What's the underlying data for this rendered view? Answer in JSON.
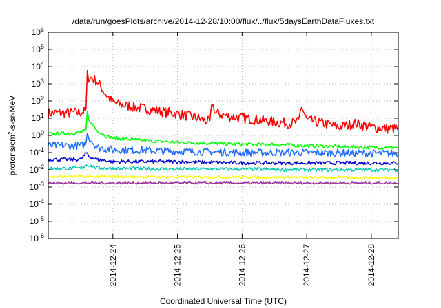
{
  "chart_data": {
    "type": "line",
    "title": "/data/run/goesPlots/archive/2014-12-28/10:00/flux/../flux/5daysEarthDataFluxes.txt",
    "xlabel": "Coordinated Universal Time (UTC)",
    "ylabel_main": "protons/cm",
    "ylabel_sup": "2",
    "ylabel_tail": "-s-sr-MeV",
    "y_scale": "log",
    "ylim": [
      1e-06,
      1000000
    ],
    "y_ticks": [
      {
        "base": "10",
        "exp": "-6",
        "value": 1e-06
      },
      {
        "base": "10",
        "exp": "-5",
        "value": 1e-05
      },
      {
        "base": "10",
        "exp": "-4",
        "value": 0.0001
      },
      {
        "base": "10",
        "exp": "-3",
        "value": 0.001
      },
      {
        "base": "10",
        "exp": "-2",
        "value": 0.01
      },
      {
        "base": "10",
        "exp": "-1",
        "value": 0.1
      },
      {
        "base": "10",
        "exp": "0",
        "value": 1
      },
      {
        "base": "10",
        "exp": "1",
        "value": 10
      },
      {
        "base": "10",
        "exp": "2",
        "value": 100
      },
      {
        "base": "10",
        "exp": "3",
        "value": 1000
      },
      {
        "base": "10",
        "exp": "4",
        "value": 10000
      },
      {
        "base": "10",
        "exp": "5",
        "value": 100000
      },
      {
        "base": "10",
        "exp": "6",
        "value": 1000000
      }
    ],
    "x_start": "2014-12-23T00:00",
    "x_end": "2014-12-28T10:00",
    "x_ticks": [
      "2014-12-24",
      "2014-12-25",
      "2014-12-26",
      "2014-12-27",
      "2014-12-28"
    ],
    "grid": true,
    "legend": "none",
    "series": [
      {
        "color": "#ff0000",
        "x": [
          "2014-12-23T00:00",
          "2014-12-23T06:00",
          "2014-12-23T12:00",
          "2014-12-23T14:00",
          "2014-12-23T14:30",
          "2014-12-23T15:00",
          "2014-12-23T18:00",
          "2014-12-23T21:00",
          "2014-12-24T00:00",
          "2014-12-24T06:00",
          "2014-12-24T12:00",
          "2014-12-24T18:00",
          "2014-12-25T00:00",
          "2014-12-25T06:00",
          "2014-12-25T12:00",
          "2014-12-25T13:00",
          "2014-12-25T14:00",
          "2014-12-25T18:00",
          "2014-12-26T00:00",
          "2014-12-26T06:00",
          "2014-12-26T12:00",
          "2014-12-26T18:00",
          "2014-12-26T21:00",
          "2014-12-26T22:00",
          "2014-12-27T00:00",
          "2014-12-27T06:00",
          "2014-12-27T12:00",
          "2014-12-27T18:00",
          "2014-12-28T00:00",
          "2014-12-28T06:00",
          "2014-12-28T10:00"
        ],
        "y": [
          20,
          20,
          22,
          25,
          3500,
          2500,
          1500,
          300,
          80,
          50,
          35,
          25,
          18,
          12,
          6,
          80,
          20,
          14,
          10,
          8,
          6,
          5,
          6,
          50,
          8,
          5,
          3,
          5,
          3,
          2.5,
          2.5
        ]
      },
      {
        "color": "#00ff00",
        "x": [
          "2014-12-23T00:00",
          "2014-12-23T06:00",
          "2014-12-23T12:00",
          "2014-12-23T14:00",
          "2014-12-23T14:30",
          "2014-12-23T15:00",
          "2014-12-23T18:00",
          "2014-12-23T21:00",
          "2014-12-24T00:00",
          "2014-12-24T12:00",
          "2014-12-25T00:00",
          "2014-12-25T12:00",
          "2014-12-26T00:00",
          "2014-12-26T12:00",
          "2014-12-27T00:00",
          "2014-12-27T12:00",
          "2014-12-28T00:00",
          "2014-12-28T10:00"
        ],
        "y": [
          1.2,
          1.3,
          1.5,
          2,
          25,
          8,
          2,
          1,
          0.7,
          0.5,
          0.4,
          0.35,
          0.3,
          0.3,
          0.25,
          0.22,
          0.2,
          0.2
        ]
      },
      {
        "color": "#1e6fff",
        "x": [
          "2014-12-23T00:00",
          "2014-12-23T12:00",
          "2014-12-23T14:00",
          "2014-12-23T14:30",
          "2014-12-23T15:00",
          "2014-12-23T18:00",
          "2014-12-24T00:00",
          "2014-12-25T00:00",
          "2014-12-26T00:00",
          "2014-12-27T00:00",
          "2014-12-28T00:00",
          "2014-12-28T10:00"
        ],
        "y": [
          0.25,
          0.25,
          0.3,
          2,
          0.8,
          0.2,
          0.15,
          0.12,
          0.1,
          0.1,
          0.09,
          0.09
        ]
      },
      {
        "color": "#0000cc",
        "x": [
          "2014-12-23T00:00",
          "2014-12-23T12:00",
          "2014-12-23T14:30",
          "2014-12-23T15:00",
          "2014-12-23T18:00",
          "2014-12-24T00:00",
          "2014-12-25T00:00",
          "2014-12-26T00:00",
          "2014-12-27T00:00",
          "2014-12-28T00:00",
          "2014-12-28T10:00"
        ],
        "y": [
          0.04,
          0.04,
          0.1,
          0.06,
          0.04,
          0.03,
          0.03,
          0.025,
          0.025,
          0.025,
          0.025
        ]
      },
      {
        "color": "#00c8b4",
        "x": [
          "2014-12-23T00:00",
          "2014-12-23T12:00",
          "2014-12-23T14:30",
          "2014-12-23T18:00",
          "2014-12-24T00:00",
          "2014-12-25T00:00",
          "2014-12-26T00:00",
          "2014-12-27T00:00",
          "2014-12-28T00:00",
          "2014-12-28T10:00"
        ],
        "y": [
          0.012,
          0.012,
          0.02,
          0.013,
          0.012,
          0.011,
          0.011,
          0.01,
          0.01,
          0.01
        ]
      },
      {
        "color": "#ffff00",
        "x": [
          "2014-12-23T00:00",
          "2014-12-24T00:00",
          "2014-12-25T00:00",
          "2014-12-26T00:00",
          "2014-12-27T00:00",
          "2014-12-28T00:00",
          "2014-12-28T10:00"
        ],
        "y": [
          0.004,
          0.004,
          0.0038,
          0.0038,
          0.0036,
          0.0035,
          0.0035
        ]
      },
      {
        "color": "#993399",
        "x": [
          "2014-12-23T00:00",
          "2014-12-24T00:00",
          "2014-12-25T00:00",
          "2014-12-26T00:00",
          "2014-12-27T00:00",
          "2014-12-28T00:00",
          "2014-12-28T10:00"
        ],
        "y": [
          0.0017,
          0.0017,
          0.0017,
          0.0017,
          0.0017,
          0.0017,
          0.0017
        ]
      }
    ]
  }
}
